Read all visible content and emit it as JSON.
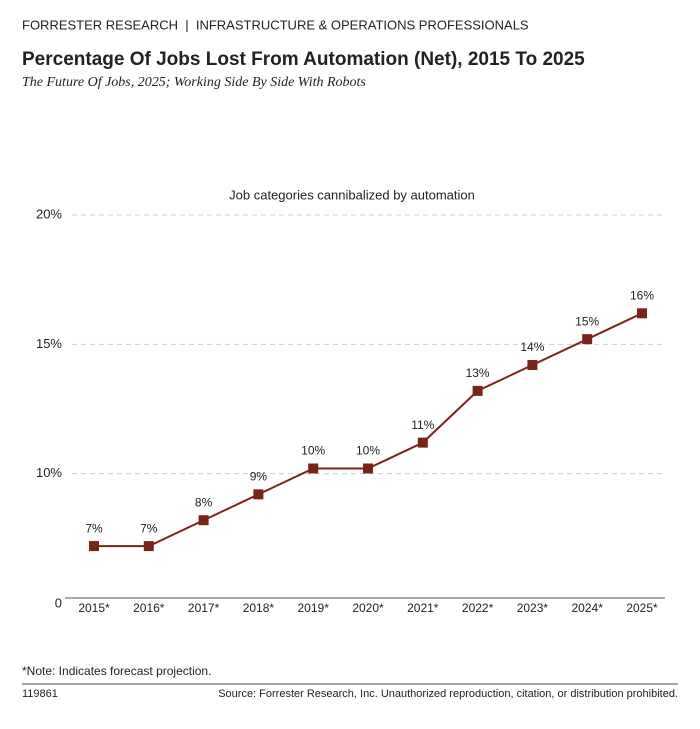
{
  "header": {
    "kicker": "FORRESTER RESEARCH  |  INFRASTRUCTURE & OPERATIONS PROFESSIONALS"
  },
  "chart_data": {
    "type": "line",
    "title": "Percentage Of Jobs Lost From Automation (Net), 2015 To 2025",
    "subtitle": "The Future Of Jobs, 2025; Working Side By Side With Robots",
    "series": [
      {
        "name": "Job categories cannibalized by automation",
        "color": "#7a2418",
        "values": [
          7.2,
          7.2,
          8.2,
          9.2,
          10.2,
          10.2,
          11.2,
          13.2,
          14.2,
          15.2,
          16.2
        ],
        "value_labels": [
          "7%",
          "7%",
          "8%",
          "9%",
          "10%",
          "10%",
          "11%",
          "13%",
          "14%",
          "15%",
          "16%"
        ]
      }
    ],
    "categories": [
      "2015*",
      "2016*",
      "2017*",
      "2018*",
      "2019*",
      "2020*",
      "2021*",
      "2022*",
      "2023*",
      "2024*",
      "2025*"
    ],
    "ylim": [
      5,
      20
    ],
    "yticks": [
      {
        "value": 10,
        "label": "10%"
      },
      {
        "value": 15,
        "label": "15%"
      },
      {
        "value": 20,
        "label": "20%"
      }
    ],
    "y_axis_origin_label": "0",
    "grid": true
  },
  "footer": {
    "note": "*Note: Indicates forecast projection.",
    "id": "119861",
    "source": "Source: Forrester Research, Inc. Unauthorized reproduction, citation, or distribution prohibited."
  }
}
